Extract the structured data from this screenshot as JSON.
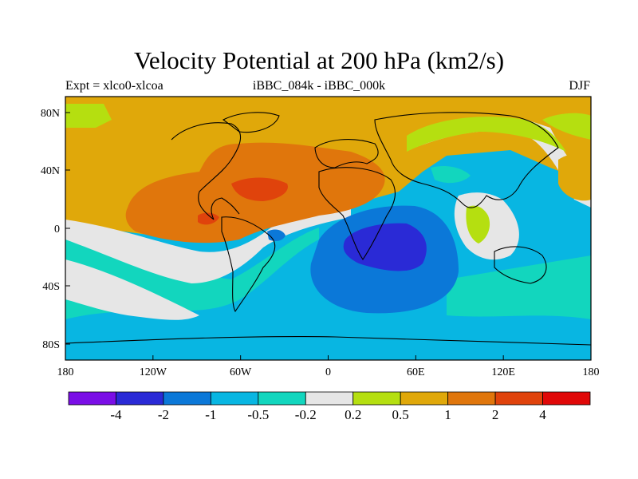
{
  "title": "Velocity Potential at 200 hPa (km2/s)",
  "subtitle_left": "Expt = xlco0-xlcoa",
  "subtitle_center": "iBBC_084k - iBBC_000k",
  "subtitle_right": "DJF",
  "x_ticks": [
    "180",
    "120W",
    "60W",
    "0",
    "60E",
    "120E",
    "180"
  ],
  "y_ticks": [
    "80N",
    "40N",
    "0",
    "40S",
    "80S"
  ],
  "colorbar": {
    "colors": [
      "#7a0ee6",
      "#2a2ad6",
      "#0b78d8",
      "#08b6e2",
      "#12d6be",
      "#e6e6e6",
      "#b5df10",
      "#e0a80a",
      "#e0760c",
      "#e0430c",
      "#e00808"
    ],
    "labels": [
      "-4",
      "-2",
      "-1",
      "-0.5",
      "-0.2",
      "0.2",
      "0.5",
      "1",
      "2",
      "4"
    ]
  },
  "colors": {
    "neg_strong": "#2a2ad6",
    "neg_mid": "#0b78d8",
    "neg_weak": "#08b6e2",
    "neg_light": "#12d6be",
    "neutral": "#e6e6e6",
    "pos_light": "#b5df10",
    "pos_weak": "#e0a80a",
    "pos_mid": "#e0760c",
    "pos_strong": "#e0430c"
  }
}
